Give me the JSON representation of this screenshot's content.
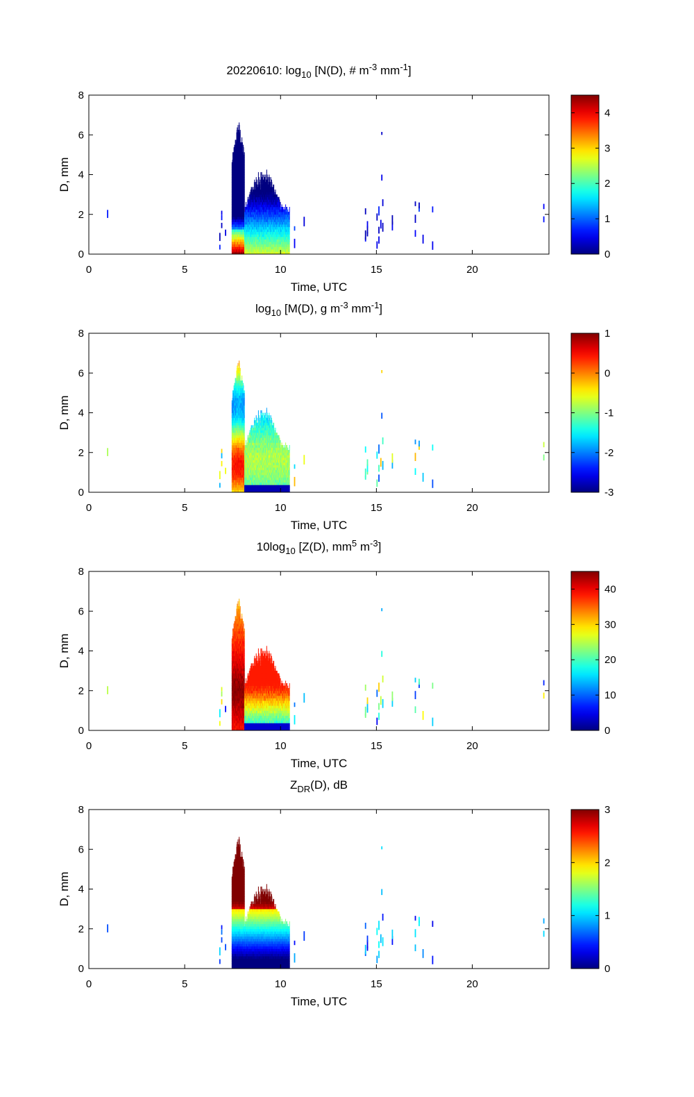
{
  "chart_data": [
    {
      "type": "heatmap",
      "title": {
        "pre": "20220610: log",
        "sub": "10",
        "mid1": " [N(D), # m",
        "sup1": "-3",
        "mid2": " mm",
        "sup2": "-1",
        "post": "]"
      },
      "xlabel": "Time, UTC",
      "ylabel": "D, mm",
      "xlim": [
        0,
        24
      ],
      "ylim": [
        0,
        8
      ],
      "xticks": [
        "0",
        "5",
        "10",
        "15",
        "20"
      ],
      "yticks": [
        "0",
        "2",
        "4",
        "6",
        "8"
      ],
      "colorbar": {
        "min": 0,
        "max": 4.5,
        "ticks": [
          "0",
          "1",
          "2",
          "3",
          "4"
        ],
        "colormap": "jet"
      },
      "field": "N"
    },
    {
      "type": "heatmap",
      "title": {
        "pre": "log",
        "sub": "10",
        "mid1": " [M(D), g m",
        "sup1": "-3",
        "mid2": " mm",
        "sup2": "-1",
        "post": "]"
      },
      "xlabel": "Time, UTC",
      "ylabel": "D, mm",
      "xlim": [
        0,
        24
      ],
      "ylim": [
        0,
        8
      ],
      "xticks": [
        "0",
        "5",
        "10",
        "15",
        "20"
      ],
      "yticks": [
        "0",
        "2",
        "4",
        "6",
        "8"
      ],
      "colorbar": {
        "min": -3,
        "max": 1,
        "ticks": [
          "-3",
          "-2",
          "-1",
          "0",
          "1"
        ],
        "colormap": "jet"
      },
      "field": "M"
    },
    {
      "type": "heatmap",
      "title": {
        "pre": "10log",
        "sub": "10",
        "mid1": " [Z(D),  mm",
        "sup1": "5",
        "mid2": " m",
        "sup2": "-3",
        "post": "]"
      },
      "xlabel": "Time, UTC",
      "ylabel": "D, mm",
      "xlim": [
        0,
        24
      ],
      "ylim": [
        0,
        8
      ],
      "xticks": [
        "0",
        "5",
        "10",
        "15",
        "20"
      ],
      "yticks": [
        "0",
        "2",
        "4",
        "6",
        "8"
      ],
      "colorbar": {
        "min": 0,
        "max": 45,
        "ticks": [
          "0",
          "10",
          "20",
          "30",
          "40"
        ],
        "colormap": "jet"
      },
      "field": "Z"
    },
    {
      "type": "heatmap",
      "title": {
        "pre": "Z",
        "sub": "DR",
        "mid1": "(D), dB",
        "sup1": "",
        "mid2": "",
        "sup2": "",
        "post": ""
      },
      "xlabel": "Time, UTC",
      "ylabel": "D, mm",
      "xlim": [
        0,
        24
      ],
      "ylim": [
        0,
        8
      ],
      "xticks": [
        "0",
        "5",
        "10",
        "15",
        "20"
      ],
      "yticks": [
        "0",
        "2",
        "4",
        "6",
        "8"
      ],
      "colorbar": {
        "min": 0,
        "max": 3,
        "ticks": [
          "0",
          "1",
          "2",
          "3"
        ],
        "colormap": "jet"
      },
      "field": "ZDR"
    }
  ],
  "data_regions": {
    "burst_1": {
      "t_start": 7.45,
      "t_peak": 7.8,
      "t_end": 8.1,
      "d_max": 6.1
    },
    "burst_2": {
      "t_start": 8.1,
      "t_end": 10.45,
      "d_max": 4.5
    },
    "scattered_times_utc": [
      0.95,
      6.8,
      6.9,
      7.1,
      10.7,
      11.2,
      14.4,
      14.5,
      15.0,
      15.1,
      15.2,
      15.3,
      15.8,
      17.0,
      17.2,
      17.4,
      17.9,
      23.7
    ]
  }
}
